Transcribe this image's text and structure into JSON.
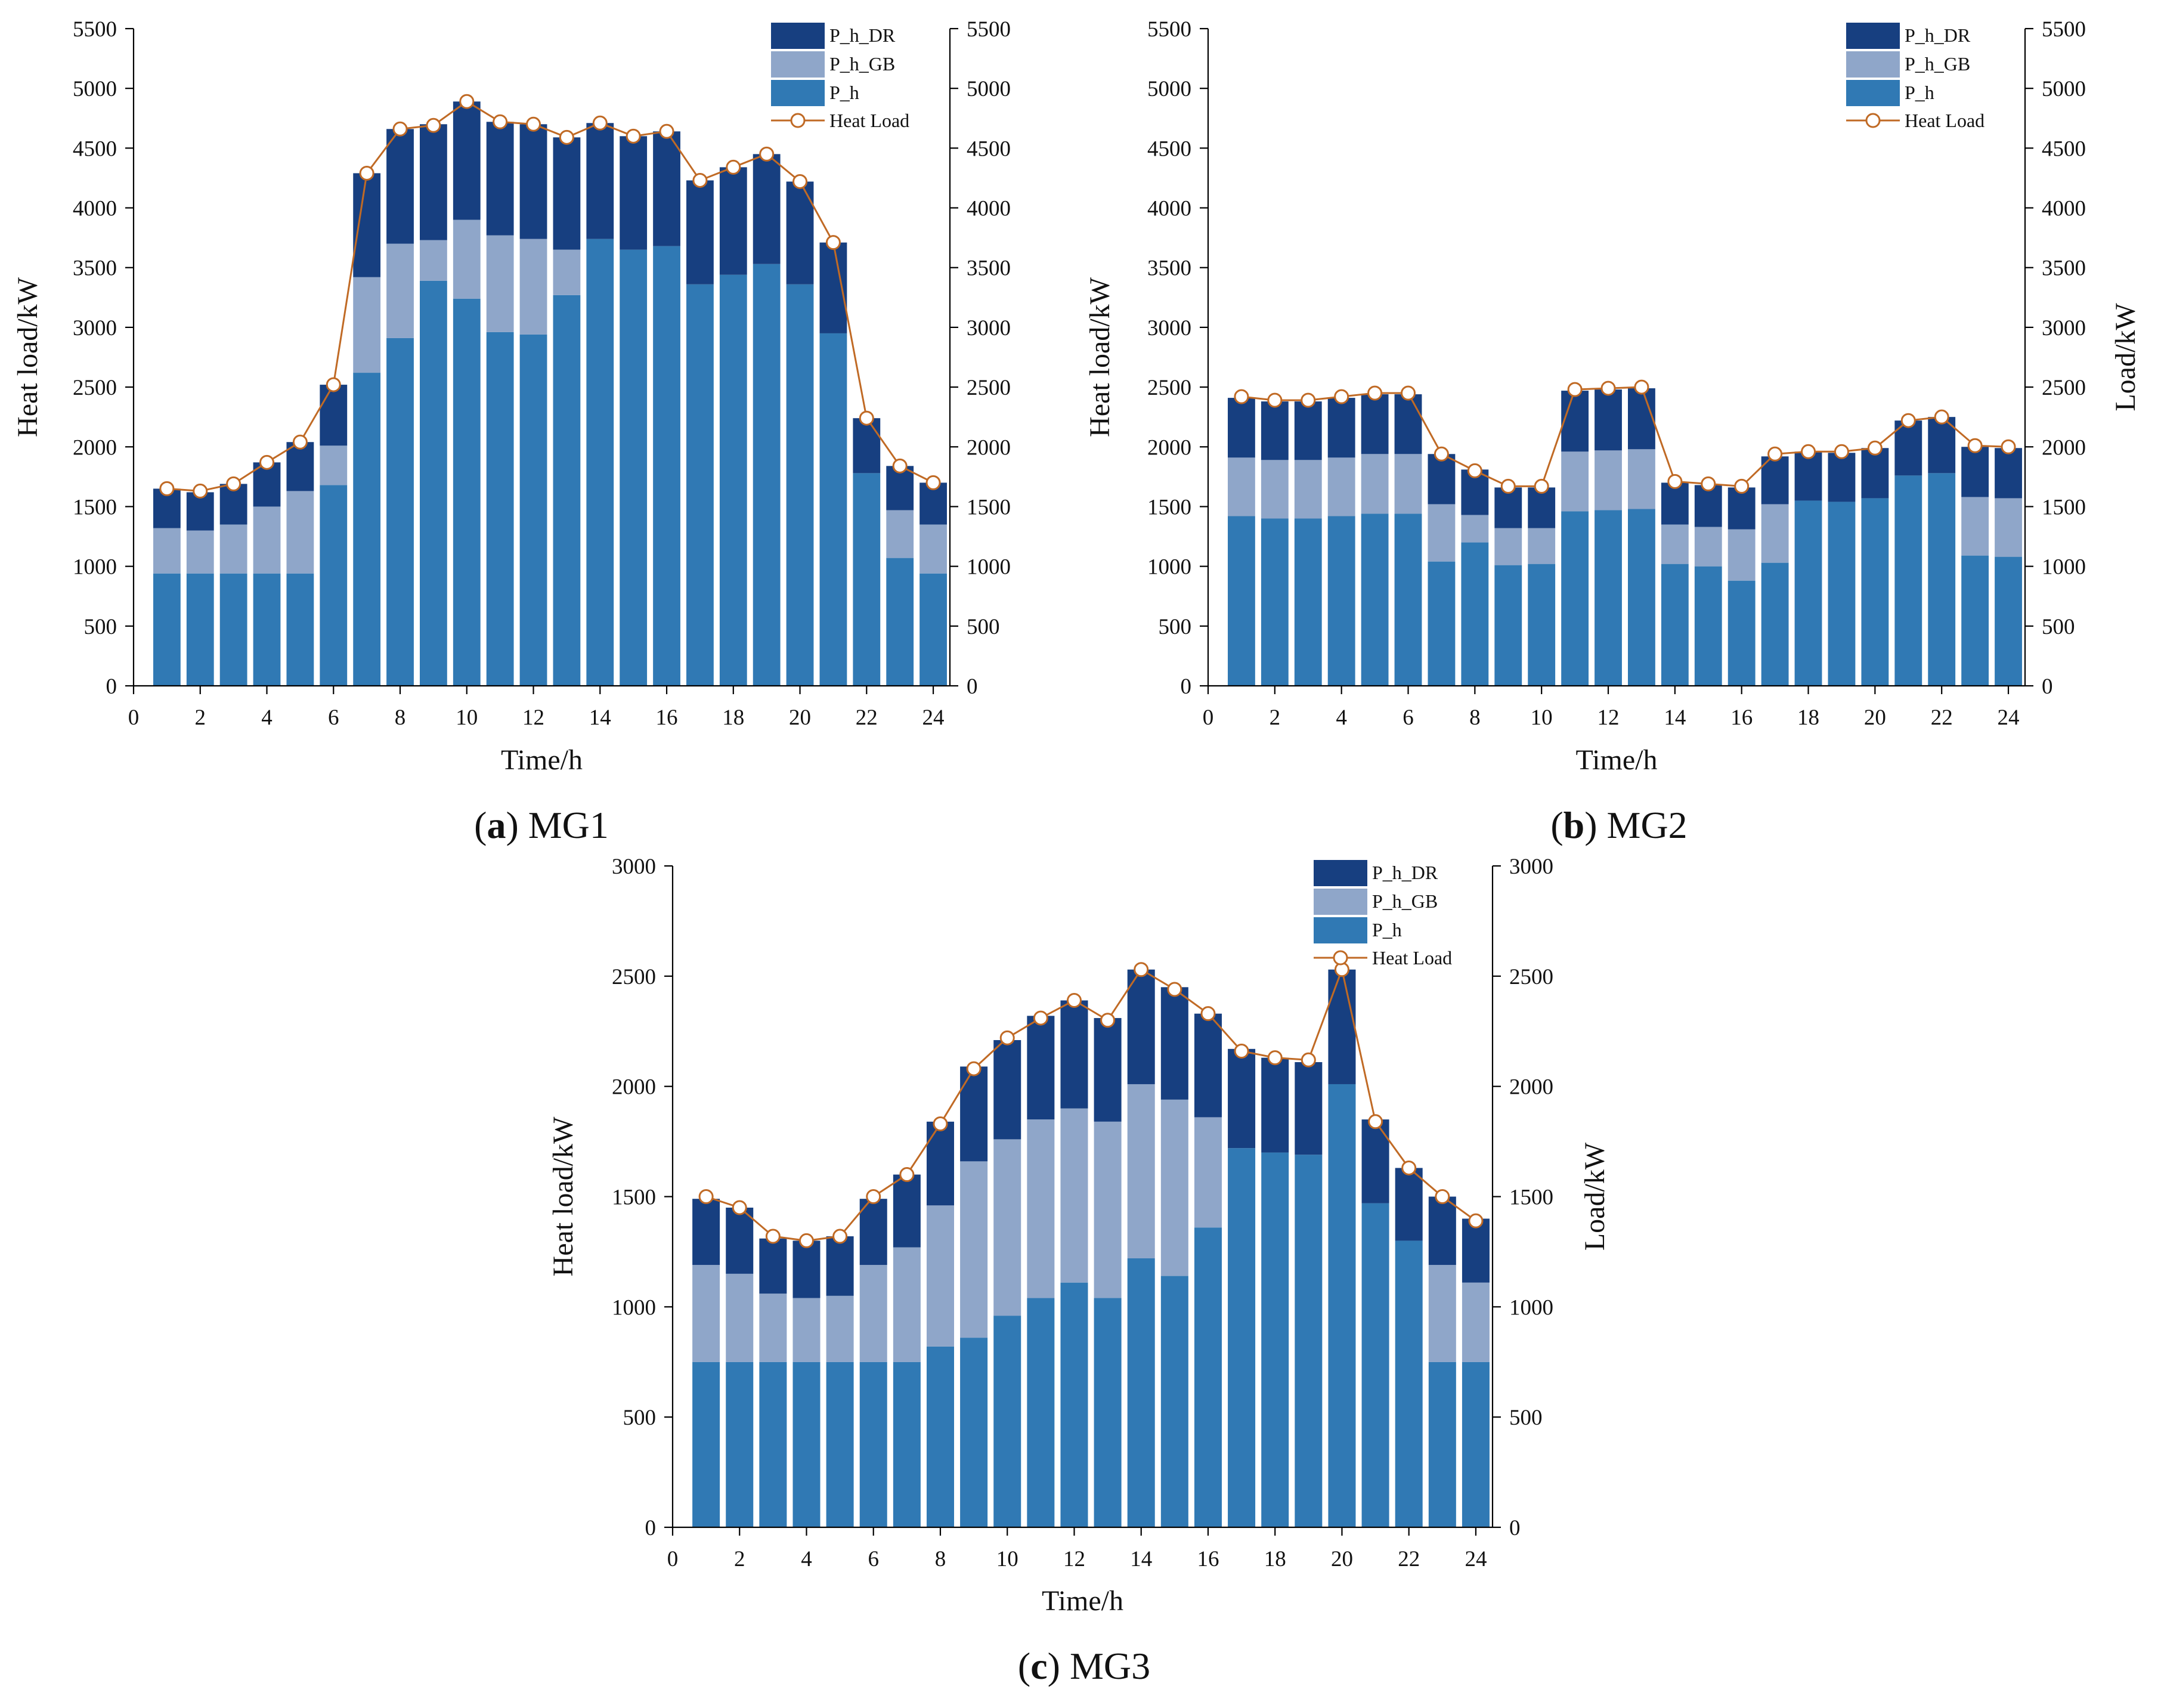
{
  "colors": {
    "p_h": "#3079b4",
    "p_h_gb": "#8fa6c9",
    "p_h_dr": "#173f80",
    "heat_load": "#c06a25",
    "marker_fill": "#ffffff"
  },
  "chart_data": [
    {
      "id": "mg1",
      "type": "bar",
      "stacked": true,
      "caption_letter": "a",
      "caption_name": "MG1",
      "xlabel": "Time/h",
      "ylabel_left": "Heat load/kW",
      "ylabel_right": "",
      "xlim": [
        0,
        24.5
      ],
      "ylim": [
        0,
        5500
      ],
      "xticks": [
        0,
        2,
        4,
        6,
        8,
        10,
        12,
        14,
        16,
        18,
        20,
        22,
        24
      ],
      "yticks": [
        0,
        500,
        1000,
        1500,
        2000,
        2500,
        3000,
        3500,
        4000,
        4500,
        5000,
        5500
      ],
      "legend_position": "top-right",
      "legend": [
        "P_h_DR",
        "P_h_GB",
        "P_h",
        "Heat Load"
      ],
      "x": [
        1,
        2,
        3,
        4,
        5,
        6,
        7,
        8,
        9,
        10,
        11,
        12,
        13,
        14,
        15,
        16,
        17,
        18,
        19,
        20,
        21,
        22,
        23,
        24
      ],
      "series": [
        {
          "name": "P_h",
          "values": [
            940,
            940,
            940,
            940,
            940,
            1680,
            2620,
            2910,
            3390,
            3240,
            2960,
            2940,
            3270,
            3740,
            3650,
            3680,
            3360,
            3440,
            3530,
            3360,
            2950,
            1780,
            1070,
            940
          ]
        },
        {
          "name": "P_h_GB",
          "values": [
            380,
            360,
            410,
            560,
            690,
            330,
            800,
            790,
            340,
            660,
            810,
            800,
            380,
            0,
            0,
            0,
            0,
            0,
            0,
            0,
            0,
            0,
            400,
            410
          ]
        },
        {
          "name": "P_h_DR",
          "values": [
            330,
            320,
            340,
            370,
            410,
            510,
            870,
            960,
            970,
            990,
            950,
            960,
            940,
            970,
            950,
            960,
            870,
            900,
            920,
            860,
            760,
            460,
            370,
            350
          ]
        },
        {
          "name": "Heat Load",
          "type": "line",
          "values": [
            1650,
            1630,
            1690,
            1870,
            2040,
            2520,
            4290,
            4660,
            4690,
            4890,
            4720,
            4700,
            4590,
            4710,
            4600,
            4640,
            4230,
            4340,
            4450,
            4220,
            3710,
            2240,
            1840,
            1700
          ]
        }
      ]
    },
    {
      "id": "mg2",
      "type": "bar",
      "stacked": true,
      "caption_letter": "b",
      "caption_name": "MG2",
      "xlabel": "Time/h",
      "ylabel_left": "Heat load/kW",
      "ylabel_right": "Load/kW",
      "xlim": [
        0,
        24.5
      ],
      "ylim": [
        0,
        5500
      ],
      "xticks": [
        0,
        2,
        4,
        6,
        8,
        10,
        12,
        14,
        16,
        18,
        20,
        22,
        24
      ],
      "yticks": [
        0,
        500,
        1000,
        1500,
        2000,
        2500,
        3000,
        3500,
        4000,
        4500,
        5000,
        5500
      ],
      "legend_position": "top-right",
      "legend": [
        "P_h_DR",
        "P_h_GB",
        "P_h",
        "Heat Load"
      ],
      "x": [
        1,
        2,
        3,
        4,
        5,
        6,
        7,
        8,
        9,
        10,
        11,
        12,
        13,
        14,
        15,
        16,
        17,
        18,
        19,
        20,
        21,
        22,
        23,
        24
      ],
      "series": [
        {
          "name": "P_h",
          "values": [
            1420,
            1400,
            1400,
            1420,
            1440,
            1440,
            1040,
            1200,
            1010,
            1020,
            1460,
            1470,
            1480,
            1020,
            1000,
            880,
            1030,
            1550,
            1540,
            1570,
            1760,
            1780,
            1090,
            1080
          ]
        },
        {
          "name": "P_h_GB",
          "values": [
            490,
            490,
            490,
            490,
            500,
            500,
            480,
            230,
            310,
            300,
            500,
            500,
            500,
            330,
            330,
            430,
            490,
            0,
            0,
            0,
            0,
            0,
            490,
            490
          ]
        },
        {
          "name": "P_h_DR",
          "values": [
            500,
            490,
            490,
            500,
            500,
            500,
            420,
            380,
            340,
            340,
            510,
            510,
            510,
            350,
            350,
            350,
            400,
            410,
            410,
            420,
            460,
            470,
            420,
            420
          ]
        },
        {
          "name": "Heat Load",
          "type": "line",
          "values": [
            2420,
            2390,
            2390,
            2420,
            2450,
            2450,
            1940,
            1800,
            1670,
            1670,
            2480,
            2490,
            2500,
            1710,
            1690,
            1670,
            1940,
            1960,
            1960,
            1990,
            2220,
            2250,
            2010,
            2000
          ]
        }
      ]
    },
    {
      "id": "mg3",
      "type": "bar",
      "stacked": true,
      "caption_letter": "c",
      "caption_name": "MG3",
      "xlabel": "Time/h",
      "ylabel_left": "Heat load/kW",
      "ylabel_right": "Load/kW",
      "xlim": [
        0,
        24.5
      ],
      "ylim": [
        0,
        3000
      ],
      "xticks": [
        0,
        2,
        4,
        6,
        8,
        10,
        12,
        14,
        16,
        18,
        20,
        22,
        24
      ],
      "yticks": [
        0,
        500,
        1000,
        1500,
        2000,
        2500,
        3000
      ],
      "legend_position": "top-right",
      "legend": [
        "P_h_DR",
        "P_h_GB",
        "P_h",
        "Heat Load"
      ],
      "x": [
        1,
        2,
        3,
        4,
        5,
        6,
        7,
        8,
        9,
        10,
        11,
        12,
        13,
        14,
        15,
        16,
        17,
        18,
        19,
        20,
        21,
        22,
        23,
        24
      ],
      "series": [
        {
          "name": "P_h",
          "values": [
            750,
            750,
            750,
            750,
            750,
            750,
            750,
            820,
            860,
            960,
            1040,
            1110,
            1040,
            1220,
            1140,
            1360,
            1720,
            1700,
            1690,
            2010,
            1470,
            1300,
            750,
            750
          ]
        },
        {
          "name": "P_h_GB",
          "values": [
            440,
            400,
            310,
            290,
            300,
            440,
            520,
            640,
            800,
            800,
            810,
            790,
            800,
            790,
            800,
            500,
            0,
            0,
            0,
            0,
            0,
            0,
            440,
            360
          ]
        },
        {
          "name": "P_h_DR",
          "values": [
            300,
            300,
            250,
            260,
            270,
            300,
            330,
            380,
            430,
            450,
            470,
            490,
            470,
            520,
            510,
            470,
            450,
            430,
            420,
            520,
            380,
            330,
            310,
            290
          ]
        },
        {
          "name": "Heat Load",
          "type": "line",
          "values": [
            1500,
            1450,
            1320,
            1300,
            1320,
            1500,
            1600,
            1830,
            2080,
            2220,
            2310,
            2390,
            2300,
            2530,
            2440,
            2330,
            2160,
            2130,
            2120,
            2530,
            1840,
            1630,
            1500,
            1390
          ]
        }
      ]
    }
  ]
}
